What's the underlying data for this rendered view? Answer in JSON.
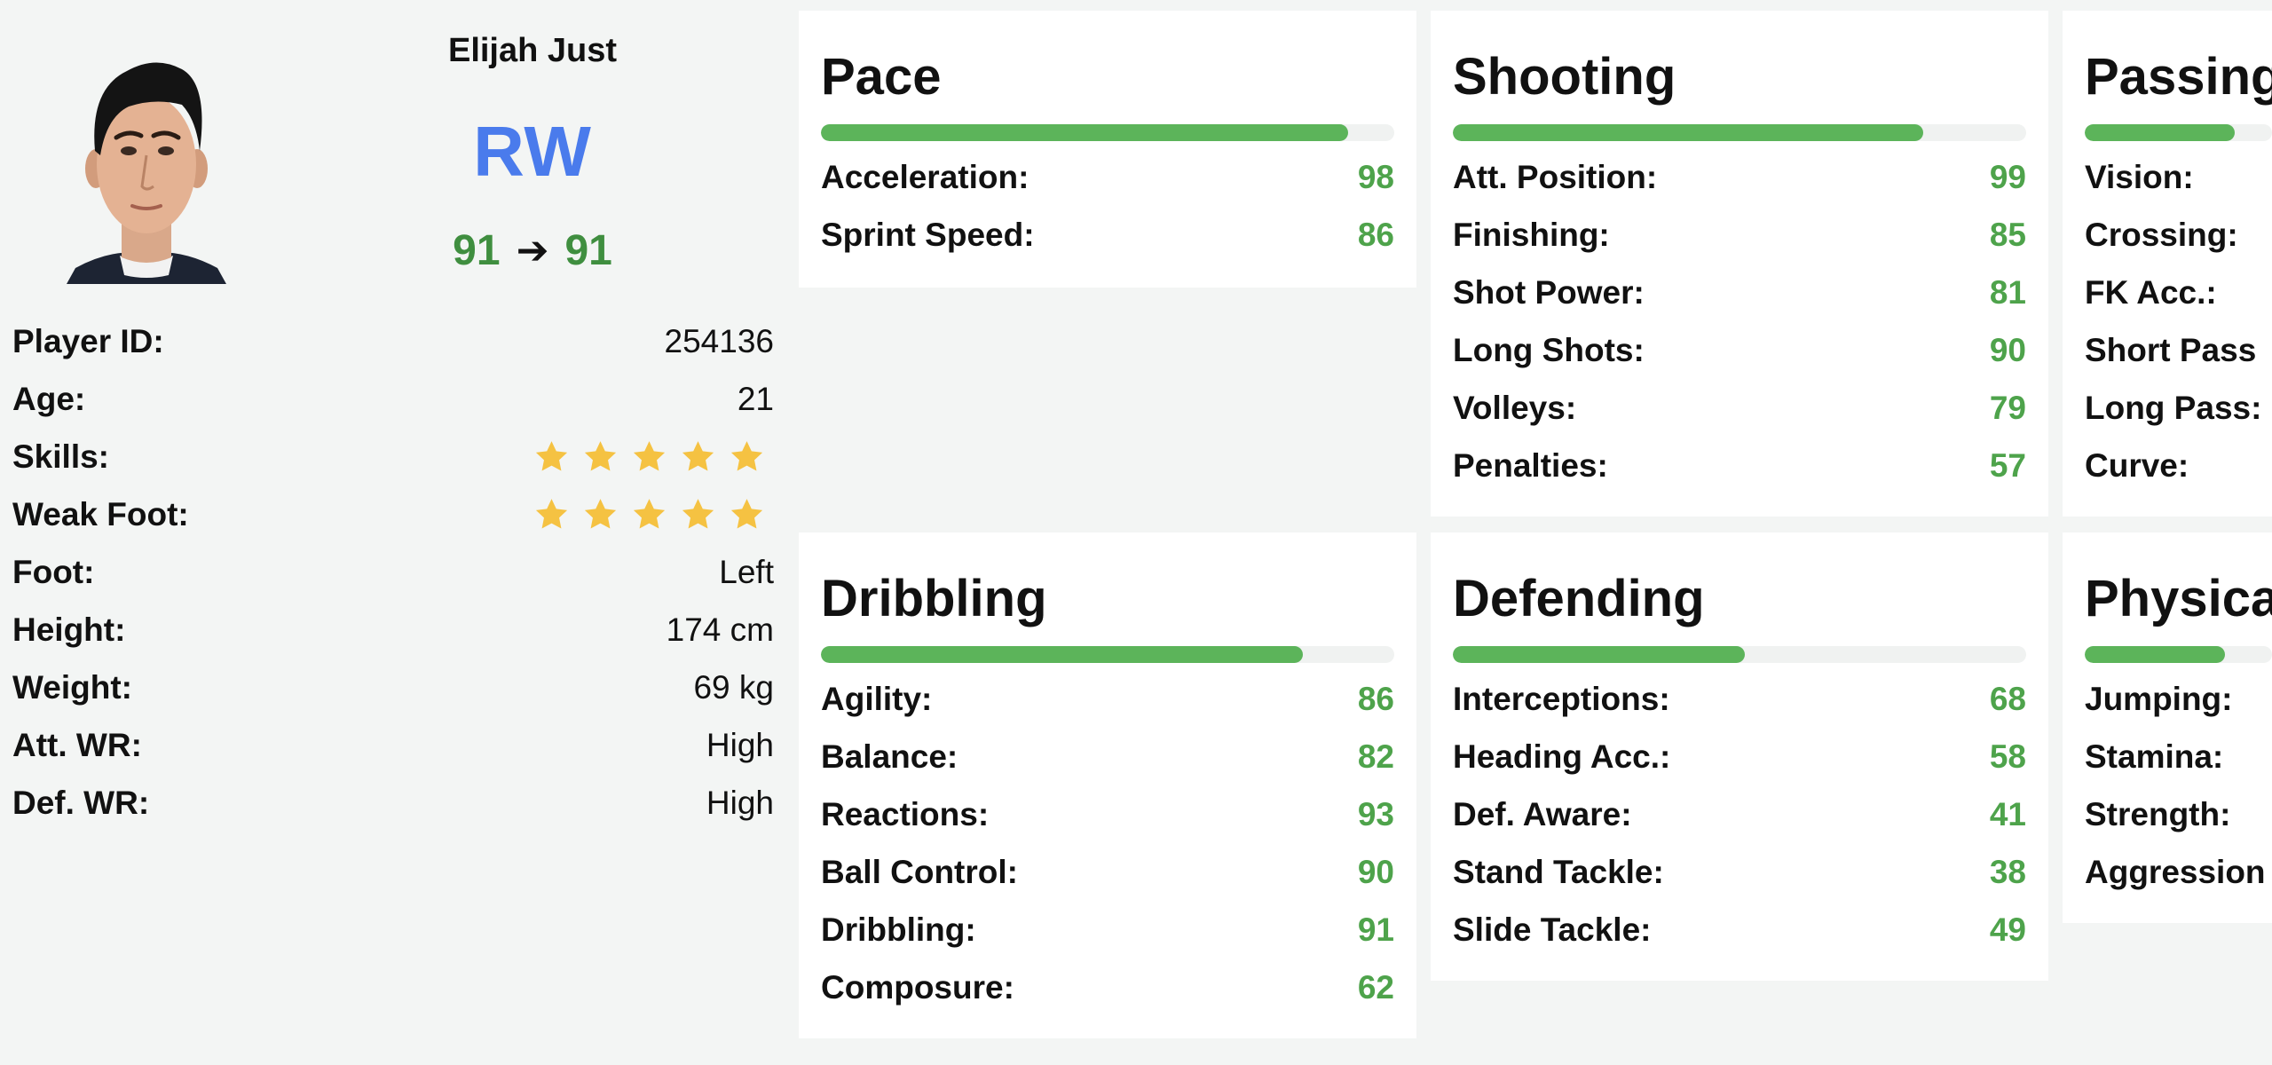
{
  "player": {
    "name": "Elijah Just",
    "position": "RW",
    "rating_from": "91",
    "rating_arrow": "➔",
    "rating_to": "91"
  },
  "info": [
    {
      "label": "Player ID:",
      "value": "254136"
    },
    {
      "label": "Age:",
      "value": "21"
    },
    {
      "label": "Skills:",
      "stars": 5
    },
    {
      "label": "Weak Foot:",
      "stars": 5
    },
    {
      "label": "Foot:",
      "value": "Left"
    },
    {
      "label": "Height:",
      "value": "174 cm"
    },
    {
      "label": "Weight:",
      "value": "69 kg"
    },
    {
      "label": "Att. WR:",
      "value": "High"
    },
    {
      "label": "Def. WR:",
      "value": "High"
    }
  ],
  "colors": {
    "position": "#4a7bec",
    "rating": "#3f8e3f",
    "stat_value": "#4ea34b",
    "bar": "#5cb45a",
    "star": "#f5c242"
  },
  "cards": [
    {
      "title": "Pace",
      "bar_percent": 92,
      "stats": [
        {
          "label": "Acceleration:",
          "value": "98"
        },
        {
          "label": "Sprint Speed:",
          "value": "86"
        }
      ]
    },
    {
      "title": "Shooting",
      "bar_percent": 82,
      "stats": [
        {
          "label": "Att. Position:",
          "value": "99"
        },
        {
          "label": "Finishing:",
          "value": "85"
        },
        {
          "label": "Shot Power:",
          "value": "81"
        },
        {
          "label": "Long Shots:",
          "value": "90"
        },
        {
          "label": "Volleys:",
          "value": "79"
        },
        {
          "label": "Penalties:",
          "value": "57"
        }
      ]
    },
    {
      "title": "Passing",
      "bar_percent": 80,
      "stats": [
        {
          "label": "Vision:",
          "value": ""
        },
        {
          "label": "Crossing:",
          "value": ""
        },
        {
          "label": "FK Acc.:",
          "value": ""
        },
        {
          "label": "Short Pass",
          "value": ""
        },
        {
          "label": "Long Pass:",
          "value": ""
        },
        {
          "label": "Curve:",
          "value": ""
        }
      ]
    },
    {
      "title": "Dribbling",
      "bar_percent": 84,
      "stats": [
        {
          "label": "Agility:",
          "value": "86"
        },
        {
          "label": "Balance:",
          "value": "82"
        },
        {
          "label": "Reactions:",
          "value": "93"
        },
        {
          "label": "Ball Control:",
          "value": "90"
        },
        {
          "label": "Dribbling:",
          "value": "91"
        },
        {
          "label": "Composure:",
          "value": "62"
        }
      ]
    },
    {
      "title": "Defending",
      "bar_percent": 51,
      "stats": [
        {
          "label": "Interceptions:",
          "value": "68"
        },
        {
          "label": "Heading Acc.:",
          "value": "58"
        },
        {
          "label": "Def. Aware:",
          "value": "41"
        },
        {
          "label": "Stand Tackle:",
          "value": "38"
        },
        {
          "label": "Slide Tackle:",
          "value": "49"
        }
      ]
    },
    {
      "title": "Physical",
      "bar_percent": 75,
      "stats": [
        {
          "label": "Jumping:",
          "value": ""
        },
        {
          "label": "Stamina:",
          "value": ""
        },
        {
          "label": "Strength:",
          "value": ""
        },
        {
          "label": "Aggression",
          "value": ""
        }
      ]
    }
  ]
}
